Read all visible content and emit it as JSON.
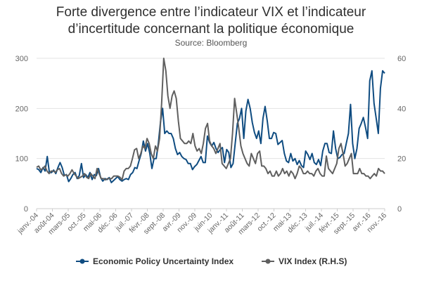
{
  "chart_data": {
    "type": "line",
    "title_line1": "Forte divergence entre l’indicateur VIX et l’indicateur",
    "title_line2": "d’incertitude concernant la politique économique",
    "subtitle": "Source: Bloomberg",
    "xlabel": "",
    "ylabel": "",
    "ylabel_right": "",
    "y_left": {
      "min": 0,
      "max": 300,
      "ticks": [
        0,
        100,
        200,
        300
      ]
    },
    "y_right": {
      "min": 0,
      "max": 60,
      "ticks": [
        0,
        20,
        40,
        60
      ]
    },
    "x_ticks": [
      "janv.-04",
      "août-04",
      "mars-05",
      "oct.-05",
      "mai-06",
      "déc.-06",
      "juil.-07",
      "févr.-08",
      "sept.-08",
      "avr.-09",
      "nov.-09",
      "juin-10",
      "janv.-11",
      "août-11",
      "mars-12",
      "oct.-12",
      "mai-13",
      "déc.-13",
      "juil.-14",
      "févr.-15",
      "sept.-15",
      "avr.-16",
      "nov.-16"
    ],
    "grid": true,
    "legend_position": "bottom",
    "series": [
      {
        "name": "Economic Policy Uncertainty Index",
        "axis": "left",
        "color": "#0f4c81",
        "values": [
          80,
          78,
          72,
          82,
          75,
          104,
          72,
          72,
          77,
          70,
          82,
          92,
          82,
          66,
          68,
          54,
          60,
          68,
          72,
          60,
          66,
          90,
          62,
          68,
          62,
          72,
          58,
          68,
          66,
          80,
          62,
          55,
          60,
          58,
          62,
          52,
          56,
          60,
          64,
          58,
          55,
          58,
          60,
          58,
          68,
          72,
          82,
          80,
          96,
          110,
          135,
          115,
          130,
          110,
          80,
          100,
          100,
          130,
          172,
          200,
          150,
          155,
          150,
          150,
          140,
          120,
          108,
          112,
          104,
          100,
          98,
          90,
          90,
          78,
          84,
          88,
          96,
          104,
          92,
          92,
          145,
          132,
          125,
          132,
          120,
          112,
          118,
          122,
          92,
          118,
          112,
          82,
          90,
          130,
          170,
          180,
          200,
          140,
          195,
          218,
          200,
          172,
          152,
          140,
          155,
          130,
          180,
          204,
          175,
          140,
          140,
          152,
          150,
          128,
          132,
          136,
          110,
          95,
          92,
          110,
          95,
          100,
          88,
          96,
          86,
          82,
          115,
          108,
          98,
          110,
          92,
          88,
          98,
          86,
          115,
          130,
          130,
          112,
          110,
          155,
          120,
          100,
          102,
          108,
          110,
          130,
          150,
          208,
          130,
          100,
          120,
          160,
          170,
          182,
          162,
          140,
          255,
          275,
          210,
          180,
          150,
          240,
          275,
          270
        ]
      },
      {
        "name": "VIX Index (R.H.S)",
        "axis": "right",
        "color": "#5f5f5f",
        "values": [
          16.5,
          17,
          15.5,
          16,
          17,
          15,
          14,
          15,
          15,
          14.5,
          15.5,
          16,
          14,
          13,
          13.5,
          13,
          14,
          15.5,
          14,
          13,
          12,
          12.5,
          13,
          14,
          12.5,
          12,
          14,
          13,
          12,
          16,
          14,
          12,
          12,
          11.5,
          12,
          12,
          12,
          13,
          13,
          13,
          12.5,
          11.5,
          15,
          16,
          16,
          17,
          20,
          23.5,
          24,
          20,
          22,
          25,
          24,
          28,
          26,
          22,
          20,
          25,
          23,
          28,
          42,
          60,
          55,
          45,
          40,
          45,
          47,
          44,
          35,
          28,
          27,
          26,
          26,
          27,
          26,
          30,
          25,
          23,
          24,
          22,
          26,
          32,
          34,
          27,
          25,
          24,
          22,
          24,
          26,
          18,
          17,
          16,
          18,
          20,
          30,
          44,
          38,
          32,
          25,
          22,
          20,
          18,
          17,
          22,
          20,
          18,
          22,
          23,
          17,
          17,
          16,
          14,
          15,
          13,
          13,
          15,
          13,
          14,
          16,
          14,
          15,
          13,
          15,
          14,
          12,
          14,
          17,
          16,
          14,
          14,
          15,
          14,
          14,
          13,
          15,
          16,
          14,
          13,
          13,
          21,
          16,
          15,
          14,
          16,
          18,
          24,
          26,
          22,
          17,
          18,
          20,
          22,
          14,
          14,
          14,
          16,
          14,
          14,
          13,
          13,
          12,
          13,
          14,
          13,
          16,
          15,
          15,
          14
        ]
      }
    ]
  }
}
